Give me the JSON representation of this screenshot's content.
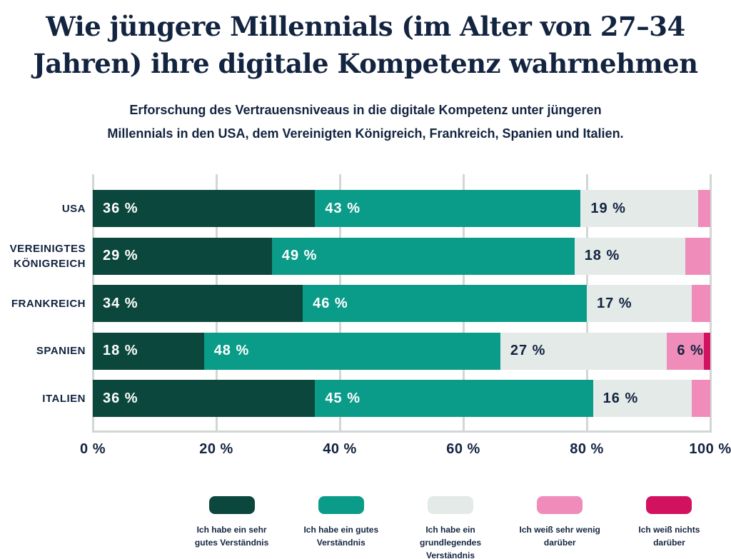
{
  "header": {
    "title_line1": "Wie jüngere Millennials (im Alter von 27–34",
    "title_line2": "Jahren) ihre digitale Kompetenz wahrnehmen",
    "subtitle_line1": "Erforschung des Vertrauensniveaus in die digitale Kompetenz unter jüngeren",
    "subtitle_line2": "Millennials in den USA, dem Vereinigten Königreich, Frankreich, Spanien und Italien."
  },
  "colors": {
    "text_navy": "#132440",
    "gridline": "#d1d7d5",
    "background": "#ffffff",
    "series": [
      "#0b473c",
      "#0b9c89",
      "#e3eae8",
      "#f08cba",
      "#d2115f"
    ]
  },
  "chart_data": {
    "type": "bar",
    "orientation": "horizontal",
    "stacked": true,
    "grid": "vertical",
    "legend_position": "bottom",
    "xlim": [
      0,
      100
    ],
    "x_ticks": [
      "0 %",
      "20 %",
      "40 %",
      "60 %",
      "80 %",
      "100 %"
    ],
    "x_tick_values": [
      0,
      20,
      40,
      60,
      80,
      100
    ],
    "categories": [
      "USA",
      "Vereinigtes Königreich",
      "Frankreich",
      "Spanien",
      "Italien"
    ],
    "category_label_lines": [
      [
        "USA"
      ],
      [
        "VEREINIGTES",
        "KÖNIGREICH"
      ],
      [
        "FRANKREICH"
      ],
      [
        "SPANIEN"
      ],
      [
        "ITALIEN"
      ]
    ],
    "series": [
      {
        "name": "Ich habe ein sehr gutes Verständnis",
        "color": "#0b473c",
        "values": [
          36,
          29,
          34,
          18,
          36
        ]
      },
      {
        "name": "Ich habe ein gutes Verständnis",
        "color": "#0b9c89",
        "values": [
          43,
          49,
          46,
          48,
          45
        ]
      },
      {
        "name": "Ich habe ein grundlegendes Verständnis",
        "color": "#e3eae8",
        "values": [
          19,
          18,
          17,
          27,
          16
        ]
      },
      {
        "name": "Ich weiß sehr wenig darüber",
        "color": "#f08cba",
        "values": [
          2,
          4,
          3,
          6,
          3
        ]
      },
      {
        "name": "Ich weiß nichts darüber",
        "color": "#d2115f",
        "values": [
          0,
          0,
          0,
          1,
          0
        ]
      }
    ],
    "value_label_format": "{v} %",
    "label_min_value": 6
  },
  "legend": {
    "items": [
      {
        "color": "#0b473c",
        "label": "Ich habe ein sehr gutes Verständnis",
        "label_lines": [
          "Ich habe ein sehr",
          "gutes Verständnis"
        ]
      },
      {
        "color": "#0b9c89",
        "label": "Ich habe ein gutes Verständnis",
        "label_lines": [
          "Ich habe ein gutes",
          "Verständnis"
        ]
      },
      {
        "color": "#e3eae8",
        "label": "Ich habe ein grundlegendes Verständnis",
        "label_lines": [
          "Ich habe ein",
          "grundlegendes",
          "Verständnis"
        ]
      },
      {
        "color": "#f08cba",
        "label": "Ich weiß sehr wenig darüber",
        "label_lines": [
          "Ich weiß sehr wenig",
          "darüber"
        ]
      },
      {
        "color": "#d2115f",
        "label": "Ich weiß nichts darüber",
        "label_lines": [
          "Ich weiß nichts",
          "darüber"
        ]
      }
    ]
  }
}
